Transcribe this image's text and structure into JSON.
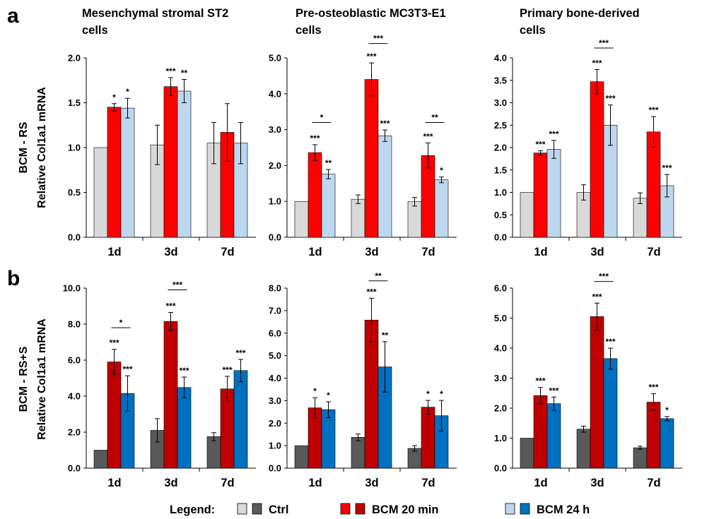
{
  "panels": {
    "a": "a",
    "b": "b"
  },
  "columns": [
    {
      "title": [
        "Mesenchymal stromal ST2",
        "cells"
      ]
    },
    {
      "title": [
        "Pre-osteoblastic MC3T3-E1",
        "cells"
      ]
    },
    {
      "title": [
        "Primary bone-derived",
        "cells"
      ]
    }
  ],
  "rows": [
    {
      "label": "BCM - RS",
      "ylabel": "Relative Col1a1 mRNA"
    },
    {
      "label": "BCM - RS+S",
      "ylabel": "Relative Col1a1 mRNA"
    }
  ],
  "legend": {
    "title": "Legend:",
    "items": [
      {
        "label": "Ctrl",
        "colors": [
          "#d9d9d9",
          "#595959"
        ]
      },
      {
        "label": "BCM 20 min",
        "colors": [
          "#ff0000",
          "#c00000"
        ]
      },
      {
        "label": "BCM 24 h",
        "colors": [
          "#bdd7ee",
          "#0070c0"
        ]
      }
    ]
  },
  "colors": {
    "row_a": [
      "#d9d9d9",
      "#ff0000",
      "#bdd7ee"
    ],
    "row_b": [
      "#595959",
      "#c00000",
      "#0070c0"
    ]
  },
  "chart_data": [
    {
      "type": "bar",
      "row": "a",
      "col": 0,
      "categories": [
        "1d",
        "3d",
        "7d"
      ],
      "ylim": [
        0,
        2.0
      ],
      "yticks": [
        "0.0",
        "0.5",
        "1.0",
        "1.5",
        "2.0"
      ],
      "series": [
        {
          "name": "Ctrl",
          "values": [
            1.0,
            1.03,
            1.05
          ],
          "errors": [
            0,
            0.22,
            0.23
          ]
        },
        {
          "name": "BCM 20 min",
          "values": [
            1.45,
            1.68,
            1.17
          ],
          "errors": [
            0.04,
            0.1,
            0.32
          ]
        },
        {
          "name": "BCM 24 h",
          "values": [
            1.44,
            1.63,
            1.05
          ],
          "errors": [
            0.11,
            0.13,
            0.23
          ]
        }
      ],
      "stars": [
        {
          "cat": 0,
          "series": 1,
          "text": "*"
        },
        {
          "cat": 0,
          "series": 2,
          "text": "*"
        },
        {
          "cat": 1,
          "series": 1,
          "text": "***"
        },
        {
          "cat": 1,
          "series": 2,
          "text": "**"
        }
      ],
      "brackets": []
    },
    {
      "type": "bar",
      "row": "a",
      "col": 1,
      "categories": [
        "1d",
        "3d",
        "7d"
      ],
      "ylim": [
        0,
        5.0
      ],
      "yticks": [
        "0.0",
        "1.0",
        "2.0",
        "3.0",
        "4.0",
        "5.0"
      ],
      "series": [
        {
          "name": "Ctrl",
          "values": [
            1.0,
            1.06,
            0.99
          ],
          "errors": [
            0,
            0.12,
            0.12
          ]
        },
        {
          "name": "BCM 20 min",
          "values": [
            2.36,
            4.4,
            2.28
          ],
          "errors": [
            0.22,
            0.46,
            0.35
          ]
        },
        {
          "name": "BCM 24 h",
          "values": [
            1.76,
            2.83,
            1.6
          ],
          "errors": [
            0.13,
            0.16,
            0.08
          ]
        }
      ],
      "stars": [
        {
          "cat": 0,
          "series": 1,
          "text": "***"
        },
        {
          "cat": 0,
          "series": 2,
          "text": "**"
        },
        {
          "cat": 1,
          "series": 1,
          "text": "***"
        },
        {
          "cat": 1,
          "series": 2,
          "text": "***"
        },
        {
          "cat": 2,
          "series": 1,
          "text": "***"
        },
        {
          "cat": 2,
          "series": 2,
          "text": "*"
        }
      ],
      "brackets": [
        {
          "cat": 0,
          "text": "*",
          "y": 3.2
        },
        {
          "cat": 1,
          "text": "***",
          "y": 5.4
        },
        {
          "cat": 2,
          "text": "**",
          "y": 3.2
        }
      ]
    },
    {
      "type": "bar",
      "row": "a",
      "col": 2,
      "categories": [
        "1d",
        "3d",
        "7d"
      ],
      "ylim": [
        0,
        4.0
      ],
      "yticks": [
        "0.0",
        "0.5",
        "1.0",
        "1.5",
        "2.0",
        "2.5",
        "3.0",
        "3.5",
        "4.0"
      ],
      "series": [
        {
          "name": "Ctrl",
          "values": [
            1.0,
            1.0,
            0.87
          ],
          "errors": [
            0,
            0.17,
            0.12
          ]
        },
        {
          "name": "BCM 20 min",
          "values": [
            1.88,
            3.47,
            2.35
          ],
          "errors": [
            0.05,
            0.27,
            0.34
          ]
        },
        {
          "name": "BCM 24 h",
          "values": [
            1.96,
            2.5,
            1.15
          ],
          "errors": [
            0.2,
            0.45,
            0.25
          ]
        }
      ],
      "stars": [
        {
          "cat": 0,
          "series": 1,
          "text": "***"
        },
        {
          "cat": 0,
          "series": 2,
          "text": "***"
        },
        {
          "cat": 1,
          "series": 1,
          "text": "***"
        },
        {
          "cat": 1,
          "series": 2,
          "text": "***"
        },
        {
          "cat": 2,
          "series": 1,
          "text": "***"
        },
        {
          "cat": 2,
          "series": 2,
          "text": "***"
        }
      ],
      "brackets": [
        {
          "cat": 1,
          "text": "***",
          "y": 4.22
        }
      ]
    },
    {
      "type": "bar",
      "row": "b",
      "col": 0,
      "categories": [
        "1d",
        "3d",
        "7d"
      ],
      "ylim": [
        0,
        10.0
      ],
      "yticks": [
        "0.0",
        "2.0",
        "4.0",
        "6.0",
        "8.0",
        "10.0"
      ],
      "series": [
        {
          "name": "Ctrl",
          "values": [
            1.0,
            2.1,
            1.75
          ],
          "errors": [
            0,
            0.65,
            0.22
          ]
        },
        {
          "name": "BCM 20 min",
          "values": [
            5.9,
            8.15,
            4.4
          ],
          "errors": [
            0.7,
            0.5,
            0.7
          ]
        },
        {
          "name": "BCM 24 h",
          "values": [
            4.15,
            4.48,
            5.42
          ],
          "errors": [
            0.98,
            0.58,
            0.62
          ]
        }
      ],
      "stars": [
        {
          "cat": 0,
          "series": 1,
          "text": "***"
        },
        {
          "cat": 0,
          "series": 2,
          "text": "***"
        },
        {
          "cat": 1,
          "series": 1,
          "text": "***"
        },
        {
          "cat": 1,
          "series": 2,
          "text": "***"
        },
        {
          "cat": 2,
          "series": 1,
          "text": "***"
        },
        {
          "cat": 2,
          "series": 2,
          "text": "***"
        }
      ],
      "brackets": [
        {
          "cat": 0,
          "text": "*",
          "y": 7.8
        },
        {
          "cat": 1,
          "text": "***",
          "y": 9.9
        }
      ]
    },
    {
      "type": "bar",
      "row": "b",
      "col": 1,
      "categories": [
        "1d",
        "3d",
        "7d"
      ],
      "ylim": [
        0,
        8.0
      ],
      "yticks": [
        "0.0",
        "1.0",
        "2.0",
        "3.0",
        "4.0",
        "5.0",
        "6.0",
        "7.0",
        "8.0"
      ],
      "series": [
        {
          "name": "Ctrl",
          "values": [
            1.0,
            1.37,
            0.88
          ],
          "errors": [
            0,
            0.15,
            0.12
          ]
        },
        {
          "name": "BCM 20 min",
          "values": [
            2.68,
            6.58,
            2.71
          ],
          "errors": [
            0.45,
            0.97,
            0.3
          ]
        },
        {
          "name": "BCM 24 h",
          "values": [
            2.6,
            4.5,
            2.33
          ],
          "errors": [
            0.35,
            1.12,
            0.68
          ]
        }
      ],
      "stars": [
        {
          "cat": 0,
          "series": 1,
          "text": "*"
        },
        {
          "cat": 0,
          "series": 2,
          "text": "*"
        },
        {
          "cat": 1,
          "series": 1,
          "text": "***"
        },
        {
          "cat": 1,
          "series": 2,
          "text": "**"
        },
        {
          "cat": 2,
          "series": 1,
          "text": "*"
        },
        {
          "cat": 2,
          "series": 2,
          "text": "*"
        }
      ],
      "brackets": [
        {
          "cat": 1,
          "text": "**",
          "y": 8.32
        }
      ]
    },
    {
      "type": "bar",
      "row": "b",
      "col": 2,
      "categories": [
        "1d",
        "3d",
        "7d"
      ],
      "ylim": [
        0,
        6.0
      ],
      "yticks": [
        "0.0",
        "1.0",
        "2.0",
        "3.0",
        "4.0",
        "5.0",
        "6.0"
      ],
      "series": [
        {
          "name": "Ctrl",
          "values": [
            1.0,
            1.3,
            0.68
          ],
          "errors": [
            0,
            0.1,
            0.05
          ]
        },
        {
          "name": "BCM 20 min",
          "values": [
            2.42,
            5.05,
            2.2
          ],
          "errors": [
            0.27,
            0.45,
            0.28
          ]
        },
        {
          "name": "BCM 24 h",
          "values": [
            2.15,
            3.65,
            1.65
          ],
          "errors": [
            0.22,
            0.35,
            0.07
          ]
        }
      ],
      "stars": [
        {
          "cat": 0,
          "series": 1,
          "text": "***"
        },
        {
          "cat": 0,
          "series": 2,
          "text": "***"
        },
        {
          "cat": 1,
          "series": 1,
          "text": "***"
        },
        {
          "cat": 1,
          "series": 2,
          "text": "***"
        },
        {
          "cat": 2,
          "series": 1,
          "text": "***"
        },
        {
          "cat": 2,
          "series": 2,
          "text": "*"
        }
      ],
      "brackets": [
        {
          "cat": 1,
          "text": "***",
          "y": 6.22
        }
      ]
    }
  ]
}
